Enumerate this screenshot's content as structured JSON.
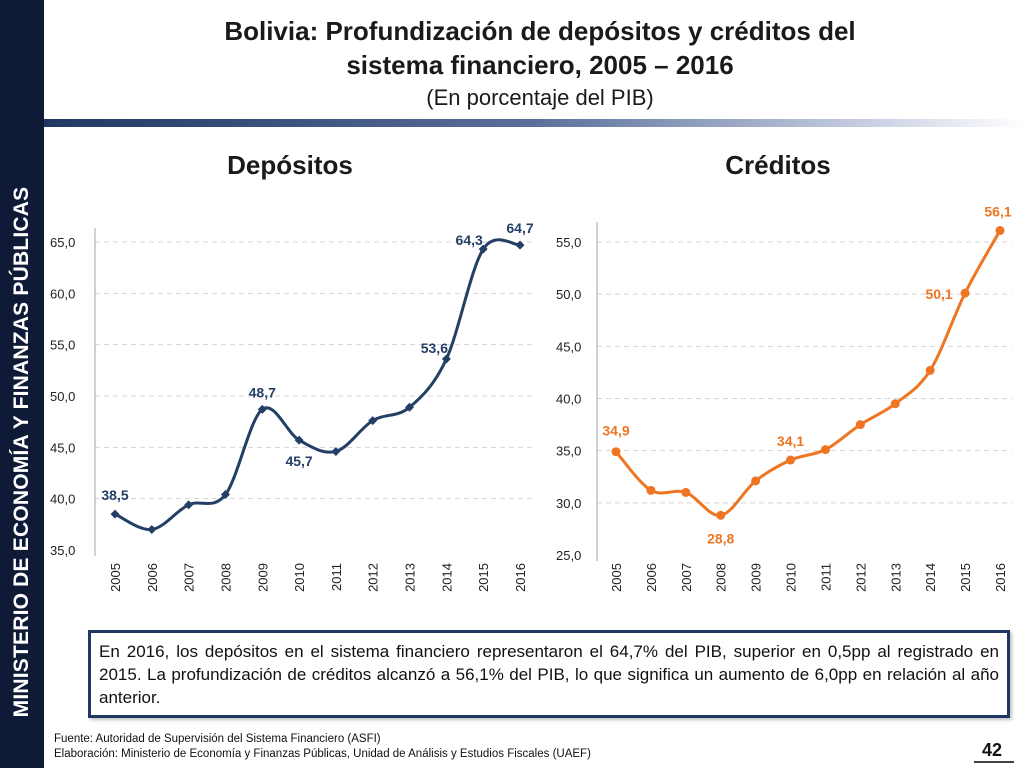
{
  "sidebar": {
    "text": "MINISTERIO DE ECONOMÍA Y FINANZAS PÚBLICAS"
  },
  "header": {
    "title_line1": "Bolivia: Profundización de depósitos y créditos del",
    "title_line2": "sistema financiero, 2005 – 2016",
    "subtitle": "(En porcentaje del PIB)"
  },
  "colors": {
    "depositos": "#243f65",
    "creditos": "#ee7623",
    "sidebar": "#0e1a36"
  },
  "chart_data": [
    {
      "type": "line",
      "title": "Depósitos",
      "categories": [
        "2005",
        "2006",
        "2007",
        "2008",
        "2009",
        "2010",
        "2011",
        "2012",
        "2013",
        "2014",
        "2015",
        "2016"
      ],
      "values": [
        38.5,
        37.0,
        39.4,
        40.4,
        48.7,
        45.7,
        44.6,
        47.6,
        48.9,
        53.6,
        64.3,
        64.7
      ],
      "labeled": [
        {
          "index": 0,
          "text": "38,5"
        },
        {
          "index": 4,
          "text": "48,7"
        },
        {
          "index": 5,
          "text": "45,7"
        },
        {
          "index": 9,
          "text": "53,6"
        },
        {
          "index": 10,
          "text": "64,3"
        },
        {
          "index": 11,
          "text": "64,7"
        }
      ],
      "yticks": [
        "35,0",
        "40,0",
        "45,0",
        "50,0",
        "55,0",
        "60,0",
        "65,0"
      ],
      "ylim": [
        35,
        65
      ],
      "grid": true,
      "marker": "diamond"
    },
    {
      "type": "line",
      "title": "Créditos",
      "categories": [
        "2005",
        "2006",
        "2007",
        "2008",
        "2009",
        "2010",
        "2011",
        "2012",
        "2013",
        "2014",
        "2015",
        "2016"
      ],
      "values": [
        34.9,
        31.2,
        31.0,
        28.8,
        32.1,
        34.1,
        35.1,
        37.5,
        39.5,
        42.7,
        50.1,
        56.1
      ],
      "labeled": [
        {
          "index": 0,
          "text": "34,9"
        },
        {
          "index": 3,
          "text": "28,8"
        },
        {
          "index": 5,
          "text": "34,1"
        },
        {
          "index": 10,
          "text": "50,1"
        },
        {
          "index": 11,
          "text": "56,1"
        }
      ],
      "yticks": [
        "25,0",
        "30,0",
        "35,0",
        "40,0",
        "45,0",
        "50,0",
        "55,0"
      ],
      "ylim": [
        25,
        55
      ],
      "grid": true,
      "marker": "circle"
    }
  ],
  "note": "En 2016, los depósitos en el sistema financiero representaron el 64,7% del PIB, superior en 0,5pp al registrado en 2015. La profundización de créditos alcanzó a 56,1% del PIB, lo que significa un aumento de 6,0pp en relación al año anterior.",
  "footer": {
    "source": "Fuente: Autoridad de Supervisión del Sistema Financiero (ASFI)",
    "elaboration": "Elaboración: Ministerio de Economía y Finanzas Públicas, Unidad de Análisis y Estudios Fiscales (UAEF)",
    "page": "42"
  }
}
